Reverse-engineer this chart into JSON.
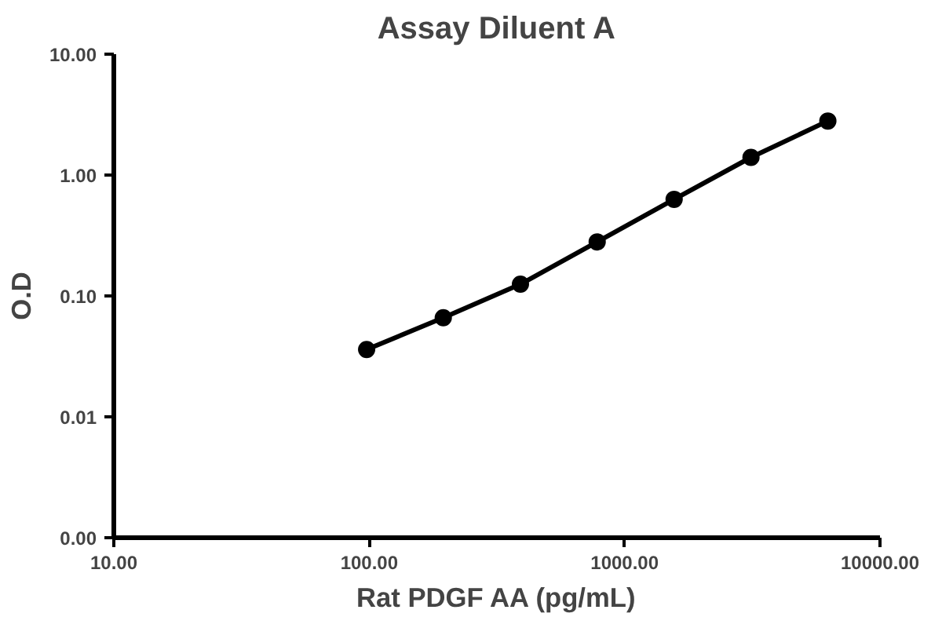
{
  "chart_data": {
    "type": "line",
    "title": "Assay Diluent A",
    "xlabel": "Rat PDGF AA (pg/mL)",
    "ylabel": "O.D",
    "log": "xy",
    "grid": false,
    "marker": "circle",
    "line_style": "solid",
    "x": [
      97.7,
      195,
      391,
      781,
      1563,
      3125,
      6250
    ],
    "series": [
      {
        "color": "#000000",
        "values": [
          0.036,
          0.066,
          0.125,
          0.28,
          0.63,
          1.4,
          2.8
        ]
      }
    ],
    "xlim": [
      10,
      10000
    ],
    "ylim": [
      0.001,
      10
    ],
    "xticks": [
      {
        "value": 10,
        "label": "10.00"
      },
      {
        "value": 100,
        "label": "100.00"
      },
      {
        "value": 1000,
        "label": "1000.00"
      },
      {
        "value": 10000,
        "label": "10000.00"
      }
    ],
    "yticks": [
      {
        "value": 0.001,
        "label": "0.00"
      },
      {
        "value": 0.01,
        "label": "0.01"
      },
      {
        "value": 0.1,
        "label": "0.10"
      },
      {
        "value": 1,
        "label": "1.00"
      },
      {
        "value": 10,
        "label": "10.00"
      }
    ]
  }
}
